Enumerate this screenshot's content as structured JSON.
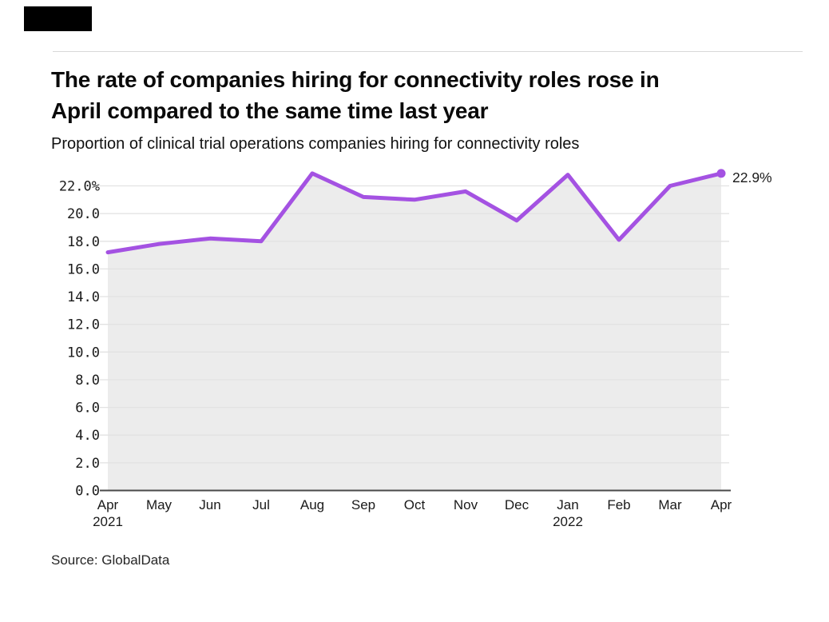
{
  "header": {
    "title_line1": "The rate of companies hiring for connectivity roles rose in",
    "title_line2": "April compared to the same time last year",
    "subtitle": "Proportion of clinical trial operations companies hiring for connectivity roles",
    "logo_color": "#000000"
  },
  "footer": {
    "source": "Source: GlobalData"
  },
  "chart_data": {
    "type": "line",
    "title": "Proportion of clinical trial operations companies hiring for connectivity roles",
    "categories": [
      "Apr 2021",
      "May",
      "Jun",
      "Jul",
      "Aug",
      "Sep",
      "Oct",
      "Nov",
      "Dec",
      "Jan 2022",
      "Feb",
      "Mar",
      "Apr"
    ],
    "values": [
      17.2,
      17.8,
      18.2,
      18.0,
      22.9,
      21.2,
      21.0,
      21.6,
      19.5,
      22.8,
      18.1,
      22.0,
      22.9
    ],
    "x_tick_labels": [
      "Apr",
      "May",
      "Jun",
      "Jul",
      "Aug",
      "Sep",
      "Oct",
      "Nov",
      "Dec",
      "Jan",
      "Feb",
      "Mar",
      "Apr"
    ],
    "x_year_labels": [
      {
        "index": 0,
        "text": "2021"
      },
      {
        "index": 9,
        "text": "2022"
      }
    ],
    "y_ticks": [
      {
        "value": 22,
        "label": "22.0%"
      },
      {
        "value": 20,
        "label": "20.0"
      },
      {
        "value": 18,
        "label": "18.0"
      },
      {
        "value": 16,
        "label": "16.0"
      },
      {
        "value": 14,
        "label": "14.0"
      },
      {
        "value": 12,
        "label": "12.0"
      },
      {
        "value": 10,
        "label": "10.0"
      },
      {
        "value": 8,
        "label": "8.0"
      },
      {
        "value": 6,
        "label": "6.0"
      },
      {
        "value": 4,
        "label": "4.0"
      },
      {
        "value": 2,
        "label": "2.0"
      },
      {
        "value": 0,
        "label": "0.0"
      }
    ],
    "ylim": [
      0,
      24
    ],
    "grid": true,
    "legend": false,
    "end_point_label": "22.9%",
    "xlabel": "",
    "ylabel": "",
    "colors": {
      "line": "#a452e2",
      "area": "#ececec",
      "grid": "#e2e2e2",
      "axis": "#4a4a4a",
      "text": "#1a1a1a"
    }
  }
}
